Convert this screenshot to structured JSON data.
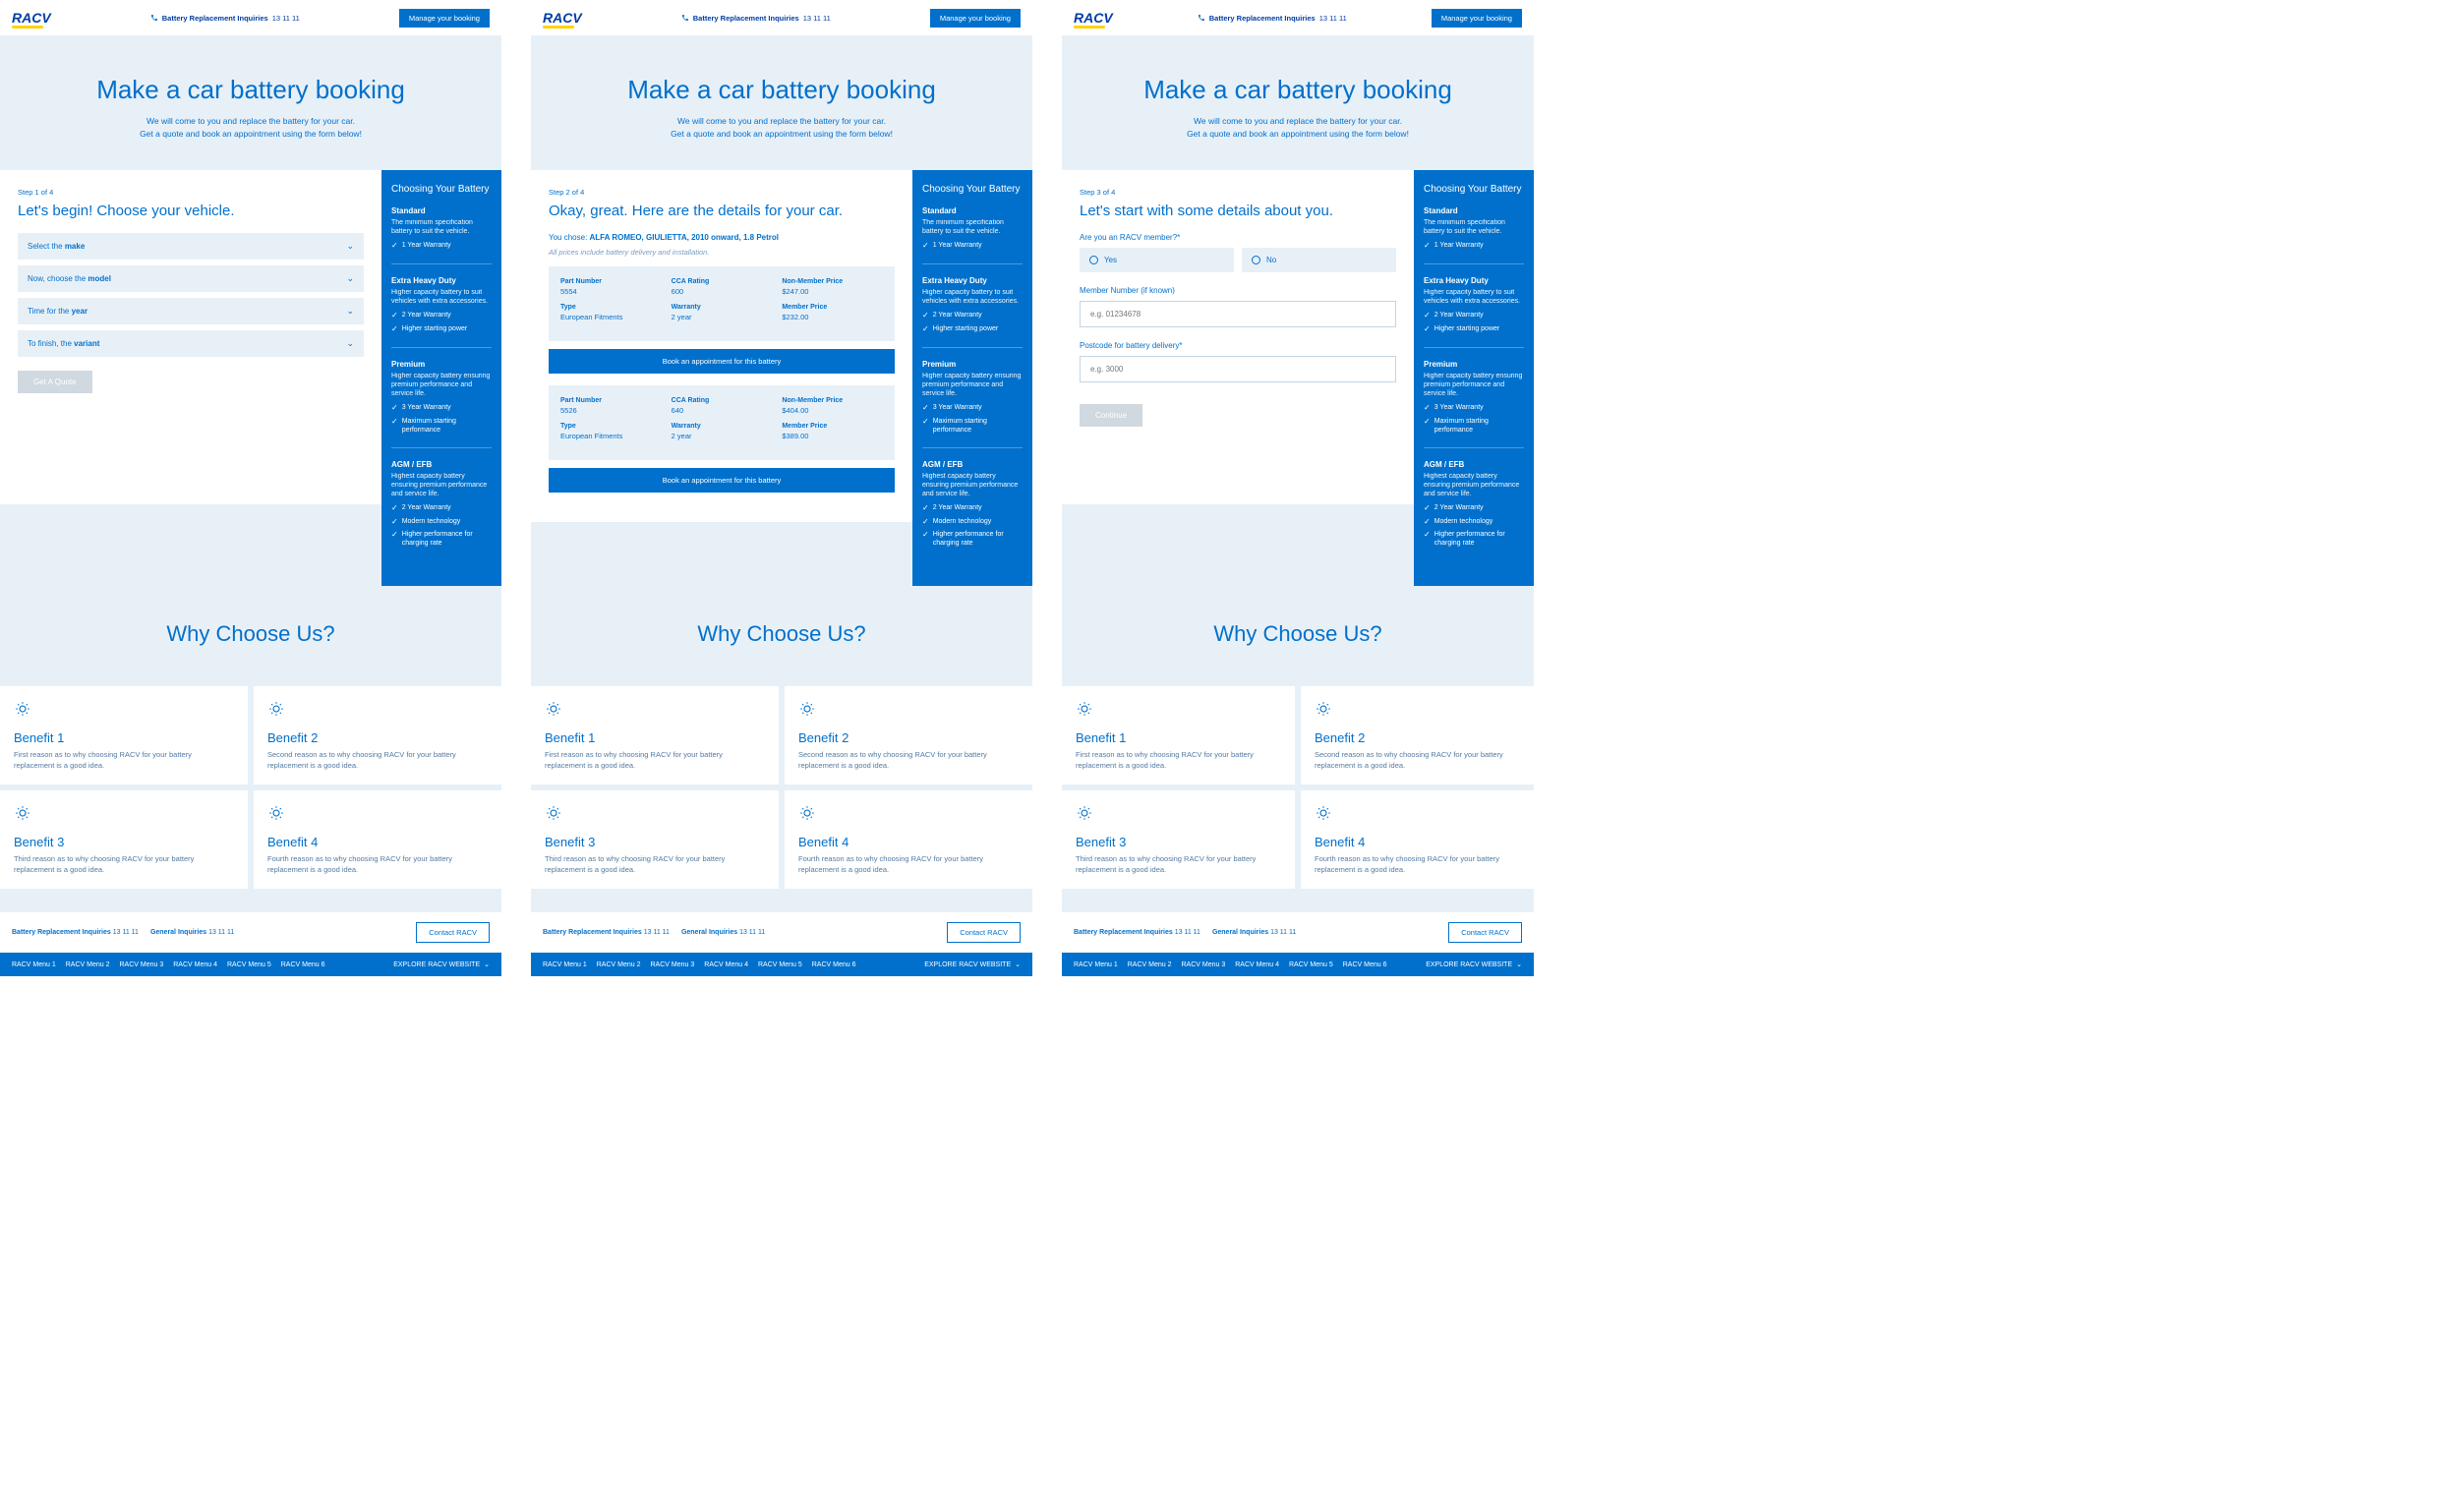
{
  "colors": {
    "primary": "#0070cc",
    "bg": "#e8f0f7",
    "accent": "#ffd200"
  },
  "header": {
    "logo": "RACV",
    "inquiry_label": "Battery Replacement Inquiries",
    "inquiry_phone": "13 11 11",
    "manage_btn": "Manage your booking"
  },
  "hero": {
    "title": "Make a car battery booking",
    "line1": "We will come to you and replace the battery for your car.",
    "line2": "Get a quote and book an appointment using the form below!"
  },
  "step1": {
    "step": "Step 1 of 4",
    "title": "Let's begin! Choose your vehicle.",
    "dd": [
      {
        "pre": "Select the ",
        "bold": "make"
      },
      {
        "pre": "Now, choose the ",
        "bold": "model"
      },
      {
        "pre": "Time for the ",
        "bold": "year"
      },
      {
        "pre": "To finish, the ",
        "bold": "variant"
      }
    ],
    "btn": "Get A Quote"
  },
  "step2": {
    "step": "Step 2 of 4",
    "title": "Okay, great. Here are the details for your car.",
    "chosen_pre": "You chose: ",
    "chosen": "ALFA ROMEO, GIULIETTA, 2010 onward, 1.8 Petrol",
    "note": "All prices include battery delivery and installation.",
    "labels": {
      "pn": "Part Number",
      "cca": "CCA Rating",
      "nmp": "Non-Member Price",
      "type": "Type",
      "war": "Warranty",
      "mp": "Member Price"
    },
    "batteries": [
      {
        "pn": "5554",
        "cca": "600",
        "nmp": "$247.00",
        "type": "European Fitments",
        "war": "2 year",
        "mp": "$232.00"
      },
      {
        "pn": "5526",
        "cca": "640",
        "nmp": "$404.00",
        "type": "European Fitments",
        "war": "2 year",
        "mp": "$389.00"
      }
    ],
    "book_btn": "Book an appointment for this battery"
  },
  "step3": {
    "step": "Step 3 of 4",
    "title": "Let's start with some details about you.",
    "q_member": "Are you an RACV member?*",
    "yes": "Yes",
    "no": "No",
    "q_num": "Member Number (if known)",
    "ph_num": "e.g. 01234678",
    "q_pc": "Postcode for battery delivery*",
    "ph_pc": "e.g. 3000",
    "btn": "Continue"
  },
  "sidebar": {
    "title": "Choosing Your Battery",
    "tiers": [
      {
        "name": "Standard",
        "desc": "The minimum specification battery to suit the vehicle.",
        "feats": [
          "1 Year Warranty"
        ]
      },
      {
        "name": "Extra Heavy Duty",
        "desc": "Higher capacity battery to suit vehicles with extra accessories.",
        "feats": [
          "2 Year Warranty",
          "Higher starting power"
        ]
      },
      {
        "name": "Premium",
        "desc": "Higher capacity battery ensuring premium performance and service life.",
        "feats": [
          "3 Year Warranty",
          "Maximum starting performance"
        ]
      },
      {
        "name": "AGM / EFB",
        "desc": "Highest capacity battery ensuring premium performance and service life.",
        "feats": [
          "2 Year Warranty",
          "Modern technology",
          "Higher performance for charging rate"
        ]
      }
    ]
  },
  "why": {
    "title": "Why Choose Us?",
    "benefits": [
      {
        "t": "Benefit 1",
        "d": "First reason as to why choosing RACV for your battery replacement is a good idea."
      },
      {
        "t": "Benefit 2",
        "d": "Second reason as to why choosing RACV for your battery replacement is a good idea."
      },
      {
        "t": "Benefit 3",
        "d": "Third reason as to why choosing RACV for your battery replacement is a good idea."
      },
      {
        "t": "Benefit 4",
        "d": "Fourth reason as to why choosing RACV for your battery replacement is a good idea."
      }
    ]
  },
  "footer": {
    "inq1": "Battery Replacement Inquiries",
    "ph1": "13 11 11",
    "inq2": "General Inquiries",
    "ph2": "13 11 11",
    "contact": "Contact RACV",
    "menus": [
      "RACV Menu 1",
      "RACV Menu 2",
      "RACV Menu 3",
      "RACV Menu 4",
      "RACV Menu 5",
      "RACV Menu 6"
    ],
    "explore": "EXPLORE RACV WEBSITE"
  }
}
